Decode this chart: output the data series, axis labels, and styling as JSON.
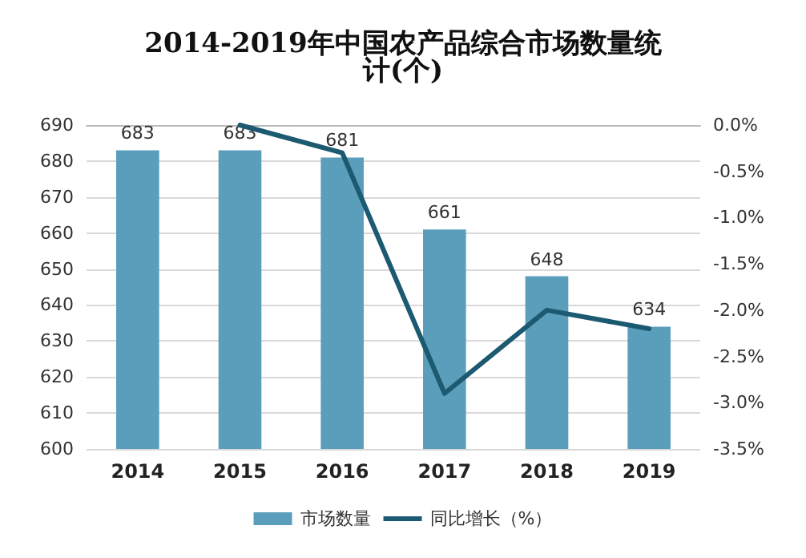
{
  "chart_data": {
    "type": "bar",
    "title": "2014-2019年中国农产品综合市场数量统计(个)",
    "categories": [
      "2014",
      "2015",
      "2016",
      "2017",
      "2018",
      "2019"
    ],
    "series": [
      {
        "name": "市场数量",
        "color": "#5b9ebb",
        "values": [
          683,
          683,
          681,
          661,
          648,
          634
        ],
        "value_labels": [
          "683",
          "683",
          "681",
          "661",
          "648",
          "634"
        ]
      },
      {
        "name": "同比增长（%）",
        "type": "line",
        "axis": "y2",
        "color": "#1b5a70",
        "values": [
          null,
          0.0,
          -0.3,
          -2.9,
          -2.0,
          -2.2
        ]
      }
    ],
    "ylim": [
      600,
      690
    ],
    "yticks": [
      600,
      610,
      620,
      630,
      640,
      650,
      660,
      670,
      680,
      690
    ],
    "y2lim": [
      -3.5,
      0
    ],
    "y2ticks": [
      {
        "value": 0,
        "label": "0.0%"
      },
      {
        "value": -0.5,
        "label": "-0.5%"
      },
      {
        "value": -1,
        "label": "-1.0%"
      },
      {
        "value": -1.5,
        "label": "-1.5%"
      },
      {
        "value": -2,
        "label": "-2.0%"
      },
      {
        "value": -2.5,
        "label": "-2.5%"
      },
      {
        "value": -3,
        "label": "-3.0%"
      },
      {
        "value": -3.5,
        "label": "-3.5%"
      }
    ],
    "grid": "y",
    "legend": "bottom",
    "marker": "none",
    "line_style": "solid"
  }
}
